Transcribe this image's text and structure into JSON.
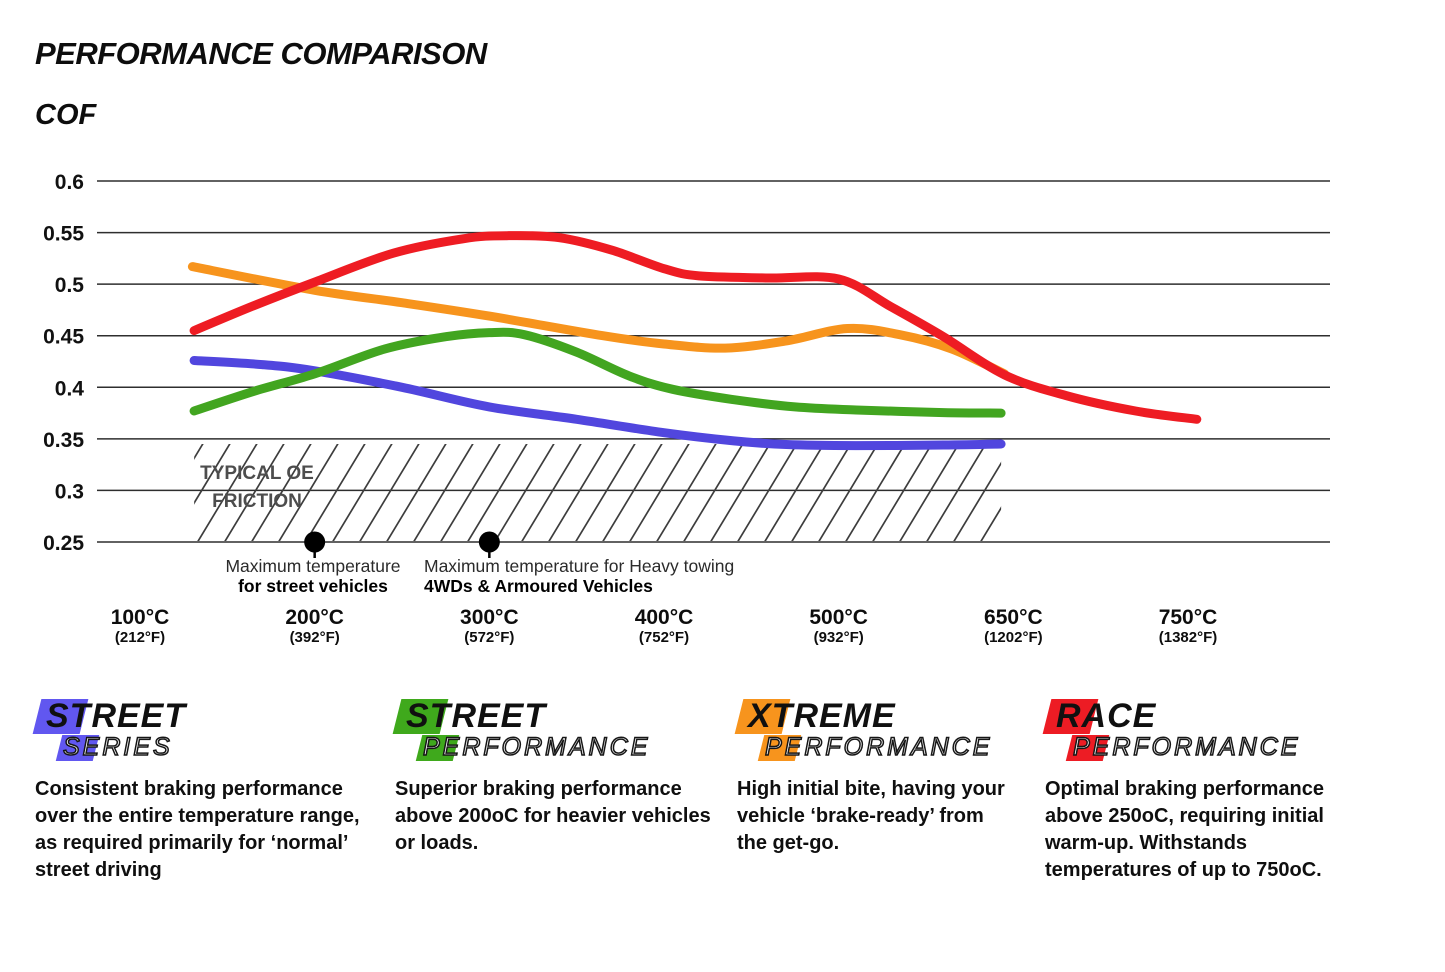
{
  "header": {
    "title": "PERFORMANCE COMPARISON",
    "ylabel": "COF"
  },
  "chart_data": {
    "type": "line",
    "title": "PERFORMANCE COMPARISON",
    "ylabel": "COF",
    "ylim": [
      0.25,
      0.6
    ],
    "grid": "horizontal",
    "x_axis_note": "categorical temperature ticks, equal spacing",
    "x_ticks": [
      {
        "c": "100°C",
        "f": "(212°F)"
      },
      {
        "c": "200°C",
        "f": "(392°F)"
      },
      {
        "c": "300°C",
        "f": "(572°F)"
      },
      {
        "c": "400°C",
        "f": "(752°F)"
      },
      {
        "c": "500°C",
        "f": "(932°F)"
      },
      {
        "c": "650°C",
        "f": "(1202°F)"
      },
      {
        "c": "750°C",
        "f": "(1382°F)"
      }
    ],
    "y_ticks": [
      {
        "label": "0.6",
        "value": 0.6
      },
      {
        "label": "0.55",
        "value": 0.55
      },
      {
        "label": "0.5",
        "value": 0.5
      },
      {
        "label": "0.45",
        "value": 0.45
      },
      {
        "label": "0.4",
        "value": 0.4
      },
      {
        "label": "0.35",
        "value": 0.35
      },
      {
        "label": "0.3",
        "value": 0.3
      },
      {
        "label": "0.25",
        "value": 0.25
      }
    ],
    "series": [
      {
        "name": "Street Series",
        "color": "#5146de",
        "points": [
          [
            0.31,
            0.426
          ],
          [
            0.7,
            0.422
          ],
          [
            1.0,
            0.416
          ],
          [
            1.5,
            0.4
          ],
          [
            2.0,
            0.381
          ],
          [
            2.5,
            0.369
          ],
          [
            3.0,
            0.356
          ],
          [
            3.4,
            0.348
          ],
          [
            3.7,
            0.3445
          ],
          [
            4.1,
            0.3435
          ],
          [
            4.6,
            0.344
          ],
          [
            4.93,
            0.345
          ]
        ]
      },
      {
        "name": "Street Performance",
        "color": "#42a520",
        "points": [
          [
            0.31,
            0.377
          ],
          [
            0.65,
            0.396
          ],
          [
            1.0,
            0.413
          ],
          [
            1.4,
            0.437
          ],
          [
            1.75,
            0.449
          ],
          [
            2.0,
            0.453
          ],
          [
            2.2,
            0.451
          ],
          [
            2.5,
            0.434
          ],
          [
            2.8,
            0.411
          ],
          [
            3.05,
            0.398
          ],
          [
            3.4,
            0.388
          ],
          [
            3.75,
            0.381
          ],
          [
            4.1,
            0.378
          ],
          [
            4.6,
            0.3755
          ],
          [
            4.93,
            0.375
          ]
        ]
      },
      {
        "name": "Xtreme Performance",
        "color": "#f7941d",
        "points": [
          [
            0.3,
            0.517
          ],
          [
            1.0,
            0.494
          ],
          [
            1.5,
            0.482
          ],
          [
            2.0,
            0.469
          ],
          [
            2.65,
            0.45
          ],
          [
            3.0,
            0.442
          ],
          [
            3.35,
            0.438
          ],
          [
            3.7,
            0.445
          ],
          [
            4.05,
            0.457
          ],
          [
            4.35,
            0.451
          ],
          [
            4.65,
            0.437
          ],
          [
            4.95,
            0.413
          ]
        ]
      },
      {
        "name": "Race Performance",
        "color": "#ee1c23",
        "points": [
          [
            0.31,
            0.455
          ],
          [
            0.65,
            0.479
          ],
          [
            1.0,
            0.502
          ],
          [
            1.45,
            0.53
          ],
          [
            1.85,
            0.544
          ],
          [
            2.1,
            0.547
          ],
          [
            2.4,
            0.545
          ],
          [
            2.7,
            0.533
          ],
          [
            3.0,
            0.515
          ],
          [
            3.2,
            0.508
          ],
          [
            3.6,
            0.506
          ],
          [
            4.0,
            0.505
          ],
          [
            4.3,
            0.478
          ],
          [
            4.6,
            0.449
          ],
          [
            4.95,
            0.412
          ],
          [
            5.3,
            0.392
          ],
          [
            5.7,
            0.377
          ],
          [
            6.05,
            0.369
          ]
        ]
      }
    ],
    "oe_friction_band": {
      "label_line1": "TYPICAL OE",
      "label_line2": "FRICTION",
      "cof_min": 0.25,
      "cof_max": 0.345,
      "t_start": 0.31,
      "t_end": 4.93
    },
    "annotations": [
      {
        "t": 1,
        "cof": 0.25,
        "line1": "Maximum temperature",
        "line2": "for street vehicles"
      },
      {
        "t": 2,
        "cof": 0.25,
        "line1": "Maximum temperature for Heavy towing",
        "line2": "4WDs & Armoured Vehicles"
      }
    ]
  },
  "legend": [
    {
      "word1": "STREET",
      "word2": "SERIES",
      "color": "#6157f0",
      "description": "Consistent braking performance over the entire temperature range, as required primarily for ‘normal’ street driving"
    },
    {
      "word1": "STREET",
      "word2": "PERFORMANCE",
      "color": "#3fa91c",
      "description": "Superior braking performance above 200oC for heavier vehicles or loads."
    },
    {
      "word1": "XTREME",
      "word2": "PERFORMANCE",
      "color": "#f7941d",
      "description": "High initial bite, having your vehicle ‘brake-ready’ from the get-go."
    },
    {
      "word1": "RACE",
      "word2": "PERFORMANCE",
      "color": "#ed1c24",
      "description": "Optimal braking performance above 250oC, requiring initial warm-up. Withstands temperatures of up to 750oC."
    }
  ]
}
